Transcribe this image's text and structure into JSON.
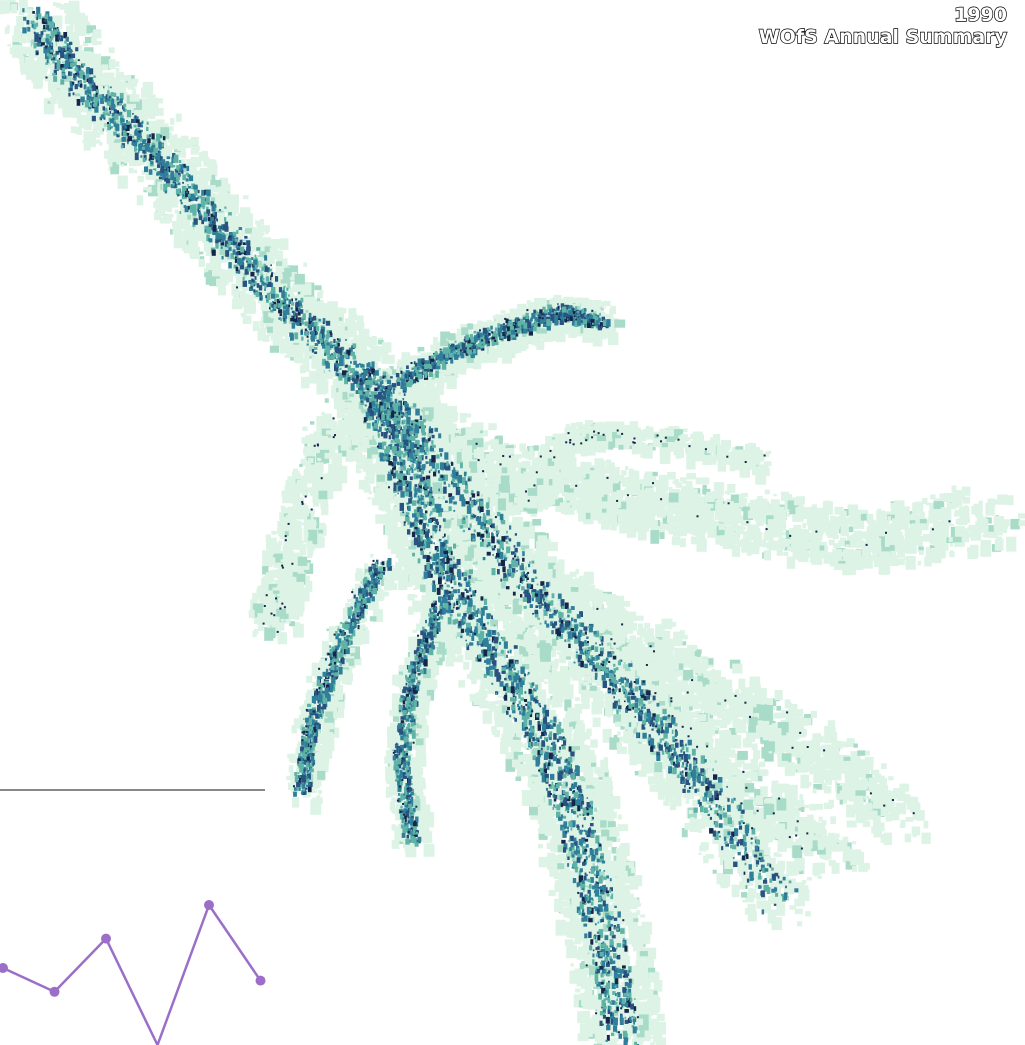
{
  "map": {
    "year": "1990",
    "product": "WOfS Annual Summary",
    "colors": {
      "low_frequency": "#dcf3e6",
      "light_teal": "#a8dcc8",
      "mid_teal": "#5fb3a6",
      "teal_blue": "#2f7f9a",
      "deep_blue": "#28527f",
      "very_deep": "#16264a"
    }
  },
  "inset_chart": {
    "type": "line",
    "color": "#9b6fc8",
    "axis_color": "#888888",
    "values": [
      0.55,
      0.38,
      0.76,
      0.0,
      1.0,
      0.46
    ],
    "ylim": [
      0,
      1
    ]
  }
}
